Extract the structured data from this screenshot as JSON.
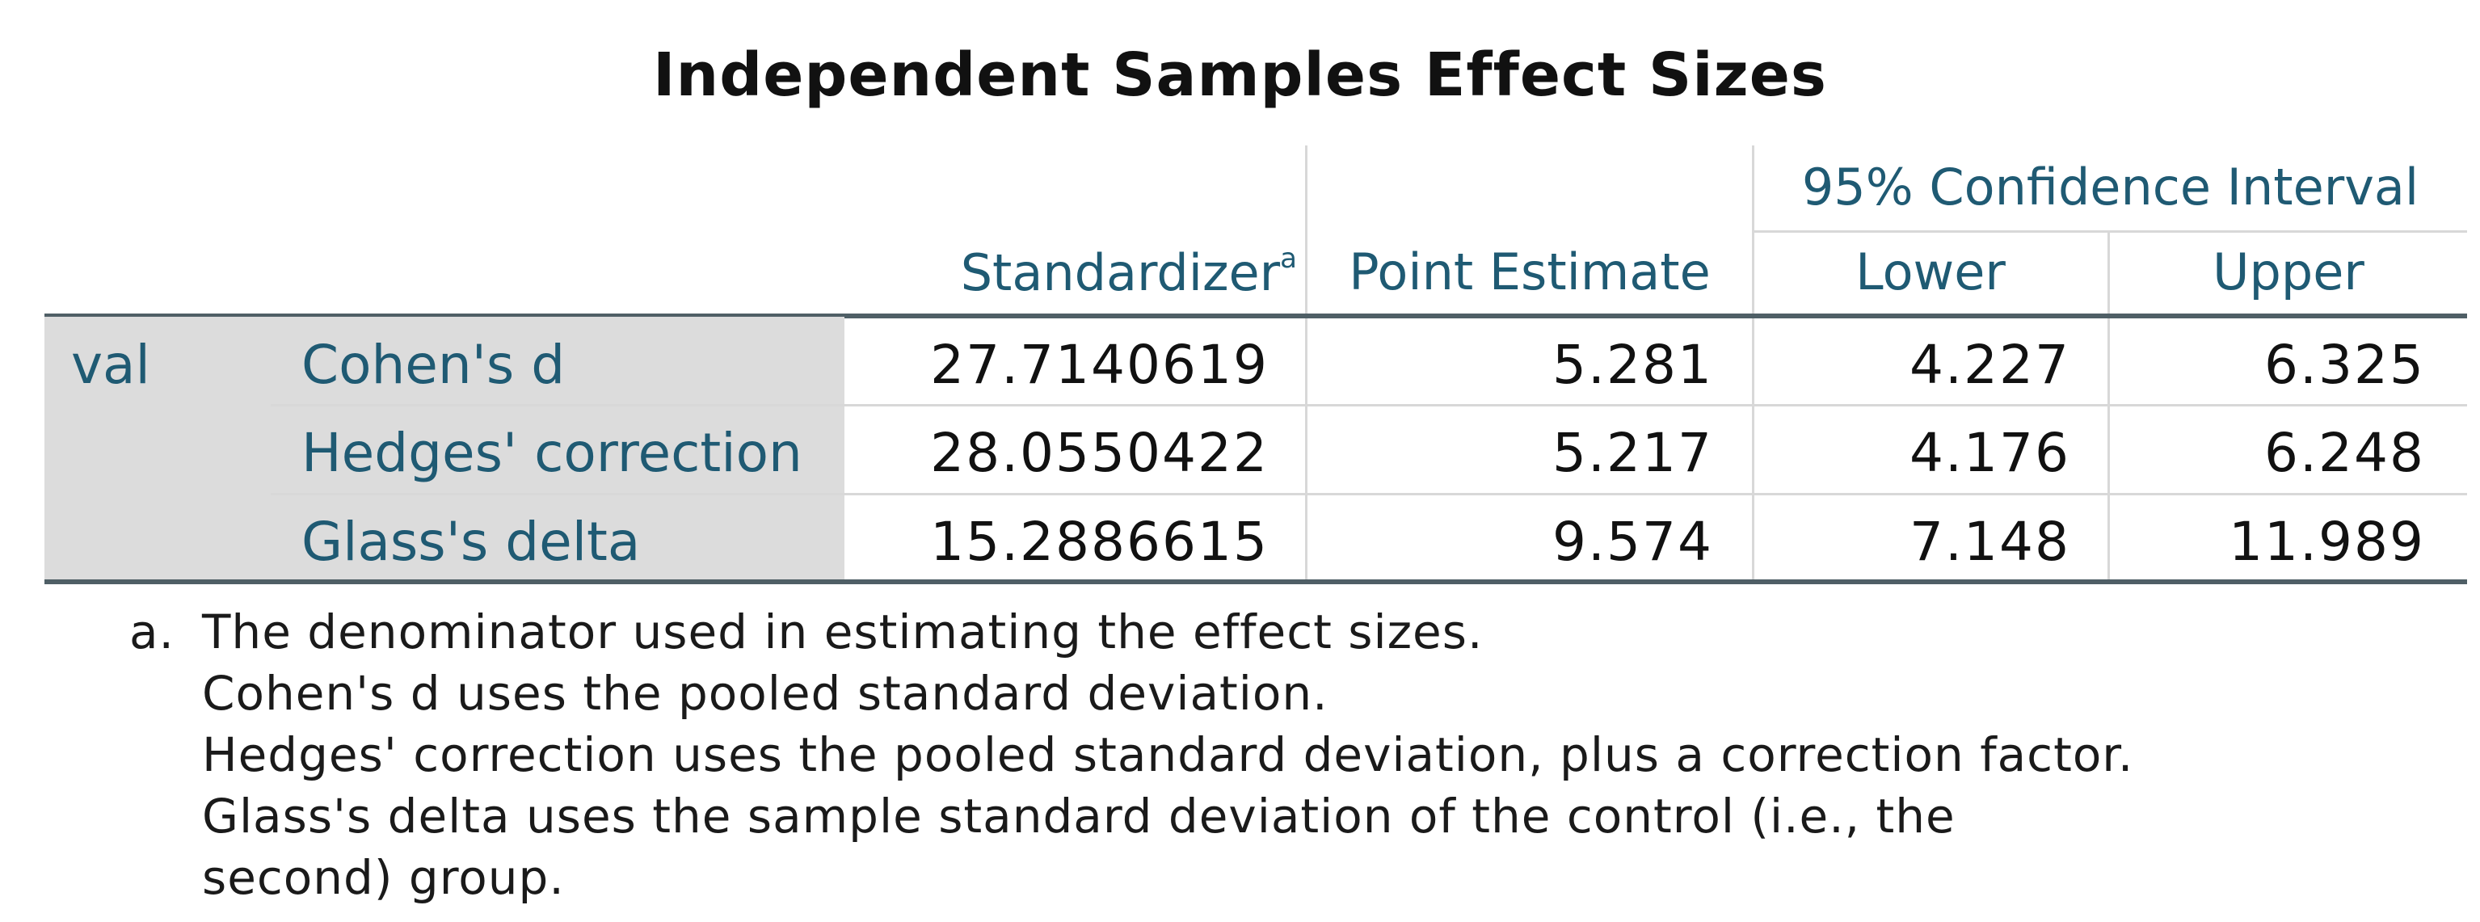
{
  "title": "Independent Samples Effect Sizes",
  "headers": {
    "standardizer": "Standardizer",
    "standardizer_note": "a",
    "point_estimate": "Point Estimate",
    "ci_group": "95% Confidence Interval",
    "lower": "Lower",
    "upper": "Upper"
  },
  "variable": "val",
  "rows": [
    {
      "label": "Cohen's d",
      "standardizer": "27.7140619",
      "point_estimate": "5.281",
      "lower": "4.227",
      "upper": "6.325"
    },
    {
      "label": "Hedges' correction",
      "standardizer": "28.0550422",
      "point_estimate": "5.217",
      "lower": "4.176",
      "upper": "6.248"
    },
    {
      "label": "Glass's delta",
      "standardizer": "15.2886615",
      "point_estimate": "9.574",
      "lower": "7.148",
      "upper": "11.989"
    }
  ],
  "footnote": {
    "marker": "a.",
    "lines": [
      "The denominator used in estimating the effect sizes.",
      "Cohen's d uses the pooled standard deviation.",
      "Hedges' correction uses the pooled standard deviation, plus a correction factor.",
      "Glass's delta uses the sample standard deviation of the control (i.e., the",
      "second) group."
    ]
  }
}
